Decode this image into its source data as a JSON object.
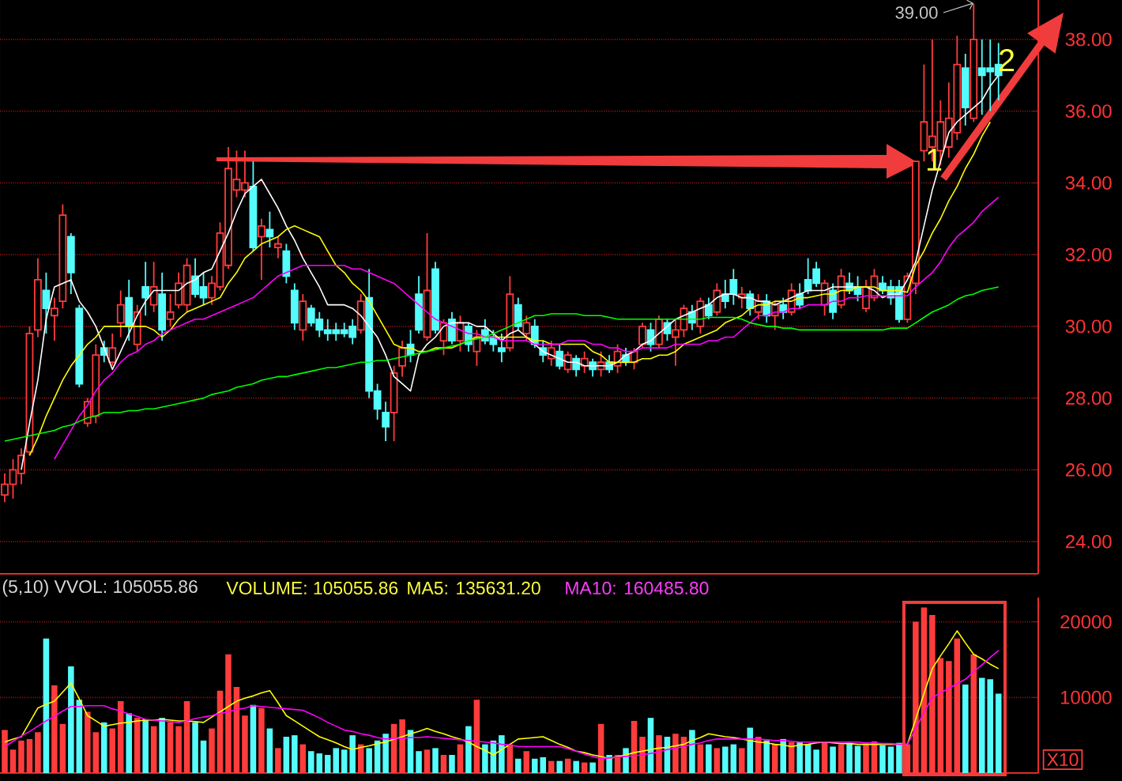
{
  "chart_data": [
    {
      "type": "candlestick",
      "categories": [
        null,
        null,
        null,
        null,
        null,
        null,
        null,
        null,
        null,
        null,
        null,
        null,
        null,
        null,
        null,
        null,
        null,
        null,
        null,
        null,
        null,
        null,
        null,
        null,
        null,
        null,
        null,
        null,
        null,
        null,
        null,
        null,
        null,
        null,
        null,
        null,
        null,
        null,
        null,
        null,
        null,
        null,
        null,
        null,
        null,
        null,
        null,
        null,
        null,
        null,
        null,
        null,
        null,
        null,
        null,
        null,
        null,
        null,
        null,
        null,
        null,
        null,
        null,
        null,
        null,
        null,
        null,
        null,
        null,
        null,
        null,
        null,
        null,
        null,
        null,
        null,
        null,
        null,
        null,
        null,
        null,
        null,
        null,
        null,
        null,
        null,
        null,
        null,
        null,
        null,
        null,
        null,
        null,
        null,
        null,
        null,
        null,
        null,
        null,
        null,
        null,
        null,
        null,
        null,
        null,
        null,
        null,
        null,
        null,
        null,
        null,
        null,
        null,
        null,
        null,
        null,
        null,
        null,
        null,
        null,
        null
      ],
      "ohlc": [
        [
          25.3,
          25.9,
          25.1,
          25.6
        ],
        [
          25.6,
          26.3,
          25.2,
          26.0
        ],
        [
          25.9,
          26.6,
          25.6,
          26.4
        ],
        [
          26.5,
          30.0,
          26.4,
          29.8
        ],
        [
          29.9,
          31.9,
          29.7,
          31.3
        ],
        [
          31.0,
          31.5,
          29.8,
          30.5
        ],
        [
          30.3,
          30.8,
          29.6,
          30.5
        ],
        [
          30.7,
          33.4,
          30.5,
          33.1
        ],
        [
          32.5,
          32.6,
          30.9,
          31.5
        ],
        [
          30.5,
          30.6,
          28.3,
          28.4
        ],
        [
          27.3,
          28.0,
          27.2,
          27.9
        ],
        [
          27.5,
          29.5,
          27.3,
          29.2
        ],
        [
          29.4,
          29.6,
          29.0,
          29.2
        ],
        [
          29.0,
          29.8,
          28.9,
          29.4
        ],
        [
          30.1,
          31.0,
          29.7,
          30.6
        ],
        [
          30.8,
          31.3,
          29.6,
          30.0
        ],
        [
          29.5,
          30.6,
          29.3,
          30.4
        ],
        [
          31.1,
          31.8,
          30.3,
          30.8
        ],
        [
          30.6,
          31.8,
          30.4,
          31.1
        ],
        [
          30.9,
          31.5,
          29.6,
          29.9
        ],
        [
          30.2,
          30.9,
          30.0,
          30.4
        ],
        [
          30.6,
          31.5,
          30.5,
          31.2
        ],
        [
          30.6,
          31.9,
          30.4,
          31.7
        ],
        [
          31.4,
          31.9,
          30.8,
          30.9
        ],
        [
          31.1,
          31.5,
          30.6,
          30.8
        ],
        [
          30.8,
          31.4,
          30.6,
          31.2
        ],
        [
          31.1,
          32.9,
          31.0,
          32.6
        ],
        [
          31.7,
          35.0,
          31.6,
          34.4
        ],
        [
          33.8,
          34.9,
          33.6,
          34.1
        ],
        [
          33.8,
          34.9,
          33.6,
          34.0
        ],
        [
          33.9,
          34.6,
          32.1,
          32.2
        ],
        [
          32.5,
          33.0,
          31.3,
          32.8
        ],
        [
          32.7,
          33.2,
          32.2,
          32.5
        ],
        [
          32.2,
          32.5,
          31.9,
          32.3
        ],
        [
          32.1,
          32.3,
          31.2,
          31.4
        ],
        [
          31.0,
          31.2,
          29.9,
          30.1
        ],
        [
          29.9,
          30.9,
          29.6,
          30.7
        ],
        [
          30.5,
          30.6,
          30.0,
          30.1
        ],
        [
          30.2,
          30.4,
          29.7,
          29.9
        ],
        [
          29.9,
          30.2,
          29.6,
          29.8
        ],
        [
          29.9,
          30.1,
          29.6,
          29.8
        ],
        [
          29.9,
          30.1,
          29.7,
          29.8
        ],
        [
          30.0,
          30.2,
          29.5,
          29.7
        ],
        [
          29.9,
          30.9,
          29.8,
          30.7
        ],
        [
          30.8,
          31.6,
          28.0,
          28.2
        ],
        [
          28.2,
          28.4,
          27.4,
          27.7
        ],
        [
          27.6,
          27.9,
          26.8,
          27.2
        ],
        [
          27.6,
          28.9,
          26.8,
          28.7
        ],
        [
          28.9,
          29.6,
          28.6,
          29.4
        ],
        [
          29.5,
          29.9,
          29.0,
          29.2
        ],
        [
          30.9,
          31.4,
          29.8,
          29.9
        ],
        [
          29.7,
          32.6,
          29.6,
          31.0
        ],
        [
          31.6,
          31.8,
          29.8,
          29.9
        ],
        [
          29.6,
          30.2,
          29.2,
          30.1
        ],
        [
          30.2,
          30.4,
          29.5,
          29.6
        ],
        [
          29.6,
          30.3,
          29.3,
          30.1
        ],
        [
          30.0,
          30.1,
          29.3,
          29.5
        ],
        [
          29.3,
          29.9,
          28.9,
          29.7
        ],
        [
          29.9,
          30.2,
          29.5,
          29.6
        ],
        [
          29.7,
          29.9,
          29.3,
          29.5
        ],
        [
          29.4,
          29.8,
          29.0,
          29.3
        ],
        [
          29.4,
          31.4,
          29.3,
          30.9
        ],
        [
          30.6,
          30.8,
          29.9,
          30.0
        ],
        [
          29.8,
          30.3,
          29.6,
          30.1
        ],
        [
          30.0,
          30.2,
          29.4,
          29.5
        ],
        [
          29.4,
          29.6,
          29.0,
          29.2
        ],
        [
          29.1,
          29.6,
          28.9,
          29.4
        ],
        [
          29.3,
          29.5,
          28.8,
          28.9
        ],
        [
          28.8,
          29.3,
          28.7,
          29.2
        ],
        [
          29.1,
          29.2,
          28.6,
          28.8
        ],
        [
          28.9,
          29.3,
          28.7,
          29.1
        ],
        [
          29.0,
          29.1,
          28.6,
          28.8
        ],
        [
          28.8,
          29.3,
          28.6,
          29.0
        ],
        [
          29.0,
          29.2,
          28.7,
          28.8
        ],
        [
          28.9,
          29.5,
          28.7,
          29.3
        ],
        [
          29.2,
          29.4,
          28.9,
          29.0
        ],
        [
          29.0,
          29.4,
          28.8,
          29.3
        ],
        [
          29.5,
          30.1,
          29.4,
          30.0
        ],
        [
          29.9,
          30.1,
          29.3,
          29.5
        ],
        [
          29.5,
          30.3,
          29.4,
          30.2
        ],
        [
          30.1,
          30.2,
          29.6,
          29.8
        ],
        [
          29.7,
          30.2,
          28.9,
          29.9
        ],
        [
          29.9,
          30.6,
          29.7,
          30.5
        ],
        [
          30.4,
          30.6,
          29.9,
          30.1
        ],
        [
          30.0,
          30.8,
          29.8,
          30.7
        ],
        [
          30.6,
          30.8,
          30.2,
          30.3
        ],
        [
          30.4,
          31.2,
          30.3,
          31.0
        ],
        [
          30.9,
          31.3,
          30.5,
          30.7
        ],
        [
          31.3,
          31.6,
          30.6,
          30.9
        ],
        [
          30.8,
          31.1,
          30.5,
          30.9
        ],
        [
          30.9,
          31.0,
          30.3,
          30.5
        ],
        [
          30.4,
          30.9,
          30.2,
          30.7
        ],
        [
          30.7,
          30.9,
          30.1,
          30.3
        ],
        [
          30.3,
          30.7,
          29.9,
          30.6
        ],
        [
          30.6,
          30.8,
          30.2,
          30.4
        ],
        [
          30.4,
          31.2,
          30.3,
          31.0
        ],
        [
          30.9,
          31.2,
          30.5,
          30.6
        ],
        [
          31.3,
          31.9,
          30.9,
          31.0
        ],
        [
          31.6,
          31.8,
          31.1,
          31.2
        ],
        [
          30.6,
          31.3,
          30.3,
          31.2
        ],
        [
          31.0,
          31.2,
          30.2,
          30.4
        ],
        [
          30.6,
          31.6,
          30.5,
          31.4
        ],
        [
          31.2,
          31.5,
          30.9,
          31.0
        ],
        [
          31.1,
          31.4,
          30.7,
          30.9
        ],
        [
          30.5,
          31.3,
          30.4,
          31.1
        ],
        [
          30.8,
          31.6,
          30.7,
          31.4
        ],
        [
          31.2,
          31.4,
          30.9,
          31.0
        ],
        [
          31.1,
          31.3,
          30.6,
          30.8
        ],
        [
          31.1,
          31.3,
          30.1,
          30.2
        ],
        [
          30.2,
          31.5,
          30.1,
          31.4
        ],
        [
          31.2,
          34.6,
          30.9,
          34.6
        ],
        [
          34.9,
          37.3,
          34.6,
          35.7
        ],
        [
          35.0,
          38.0,
          34.6,
          35.3
        ],
        [
          34.9,
          36.3,
          34.5,
          35.7
        ],
        [
          35.0,
          36.8,
          34.7,
          35.8
        ],
        [
          35.4,
          38.1,
          35.2,
          37.3
        ],
        [
          37.2,
          37.6,
          35.6,
          36.1
        ],
        [
          35.8,
          39.0,
          35.7,
          38.0
        ],
        [
          37.2,
          38.0,
          35.9,
          37.0
        ],
        [
          37.2,
          38.0,
          36.0,
          37.1
        ],
        [
          37.3,
          37.9,
          36.3,
          37.0
        ]
      ],
      "colors": [
        "#ff3c3c",
        "#ff3c3c",
        "#ff3c3c",
        "#ff3c3c",
        "#ff3c3c",
        "#54fcfc",
        "#ff3c3c",
        "#ff3c3c",
        "#54fcfc",
        "#54fcfc",
        "#ff3c3c",
        "#ff3c3c",
        "#54fcfc",
        "#ff3c3c",
        "#ff3c3c",
        "#54fcfc",
        "#ff3c3c",
        "#54fcfc",
        "#ff3c3c",
        "#54fcfc",
        "#ff3c3c",
        "#ff3c3c",
        "#ff3c3c",
        "#54fcfc",
        "#54fcfc",
        "#ff3c3c",
        "#ff3c3c",
        "#ff3c3c",
        "#ff3c3c",
        "#ff3c3c",
        "#54fcfc",
        "#ff3c3c",
        "#54fcfc",
        "#ff3c3c",
        "#54fcfc",
        "#54fcfc",
        "#ff3c3c",
        "#54fcfc",
        "#54fcfc",
        "#54fcfc",
        "#54fcfc",
        "#54fcfc",
        "#54fcfc",
        "#ff3c3c",
        "#54fcfc",
        "#54fcfc",
        "#54fcfc",
        "#ff3c3c",
        "#ff3c3c",
        "#54fcfc",
        "#54fcfc",
        "#ff3c3c",
        "#54fcfc",
        "#ff3c3c",
        "#54fcfc",
        "#ff3c3c",
        "#54fcfc",
        "#ff3c3c",
        "#54fcfc",
        "#54fcfc",
        "#54fcfc",
        "#ff3c3c",
        "#54fcfc",
        "#ff3c3c",
        "#54fcfc",
        "#54fcfc",
        "#ff3c3c",
        "#54fcfc",
        "#ff3c3c",
        "#54fcfc",
        "#ff3c3c",
        "#54fcfc",
        "#ff3c3c",
        "#54fcfc",
        "#ff3c3c",
        "#54fcfc",
        "#ff3c3c",
        "#ff3c3c",
        "#54fcfc",
        "#ff3c3c",
        "#54fcfc",
        "#ff3c3c",
        "#ff3c3c",
        "#54fcfc",
        "#ff3c3c",
        "#54fcfc",
        "#ff3c3c",
        "#54fcfc",
        "#54fcfc",
        "#ff3c3c",
        "#54fcfc",
        "#ff3c3c",
        "#54fcfc",
        "#ff3c3c",
        "#54fcfc",
        "#ff3c3c",
        "#54fcfc",
        "#54fcfc",
        "#54fcfc",
        "#ff3c3c",
        "#54fcfc",
        "#ff3c3c",
        "#54fcfc",
        "#54fcfc",
        "#ff3c3c",
        "#ff3c3c",
        "#54fcfc",
        "#54fcfc",
        "#54fcfc",
        "#ff3c3c",
        "#ff3c3c",
        "#ff3c3c",
        "#ff3c3c",
        "#ff3c3c",
        "#ff3c3c",
        "#ff3c3c",
        "#54fcfc",
        "#ff3c3c",
        "#54fcfc",
        "#54fcfc",
        "#54fcfc"
      ],
      "series": [
        {
          "type": "line",
          "color": "#ffffff",
          "values": [
            null,
            null,
            26.0,
            27.3,
            28.5,
            30.2,
            31.1,
            31.2,
            31.3,
            30.7,
            30.4,
            30.0,
            29.4,
            28.8,
            29.3,
            29.8,
            30.3,
            30.7,
            31.0,
            31.0,
            31.0,
            31.0,
            31.2,
            31.3,
            31.5,
            31.6,
            32.1,
            32.6,
            33.2,
            33.7,
            33.9,
            34.1,
            33.7,
            33.3,
            32.8,
            32.4,
            31.9,
            31.5,
            31.1,
            30.6,
            30.6,
            30.6,
            30.5,
            30.3,
            30.0,
            29.7,
            29.2,
            28.6,
            28.4,
            28.2,
            29.2,
            29.5,
            29.7,
            30.0,
            30.1,
            30.1,
            30.1,
            30.0,
            30.0,
            29.8,
            29.6,
            29.8,
            29.9,
            29.7,
            29.5,
            29.3,
            29.2,
            29.1,
            29.0,
            29.0,
            28.9,
            28.9,
            28.9,
            28.9,
            29.0,
            29.2,
            29.3,
            29.5,
            29.6,
            29.8,
            30.0,
            30.2,
            30.3,
            30.4,
            30.5,
            30.6,
            30.8,
            30.9,
            30.9,
            30.8,
            30.8,
            30.7,
            30.7,
            30.6,
            30.7,
            30.8,
            30.9,
            31.0,
            31.0,
            31.0,
            31.1,
            31.1,
            31.1,
            31.1,
            31.1,
            31.0,
            30.8,
            30.9,
            30.9,
            31.3,
            31.8,
            32.8,
            33.8,
            34.6,
            35.4,
            35.7,
            35.9,
            36.1,
            36.3,
            36.7,
            37.0
          ]
        },
        {
          "type": "line",
          "color": "#ffff00",
          "values": [
            null,
            null,
            null,
            26.4,
            26.9,
            27.5,
            28.0,
            28.5,
            28.9,
            29.2,
            29.5,
            29.7,
            30.0,
            30.0,
            30.0,
            30.0,
            30.0,
            30.0,
            29.9,
            29.7,
            29.9,
            30.2,
            30.4,
            30.5,
            30.6,
            30.7,
            30.8,
            31.2,
            31.5,
            31.9,
            32.1,
            32.3,
            32.4,
            32.5,
            32.7,
            32.8,
            32.7,
            32.6,
            32.5,
            32.1,
            31.7,
            31.5,
            31.2,
            31.0,
            30.7,
            30.3,
            29.9,
            29.5,
            29.4,
            29.4,
            29.3,
            29.3,
            29.4,
            29.4,
            29.4,
            29.5,
            29.6,
            29.7,
            29.7,
            29.7,
            29.7,
            29.7,
            29.7,
            29.7,
            29.6,
            29.6,
            29.5,
            29.5,
            29.5,
            29.5,
            29.5,
            29.3,
            29.2,
            29.0,
            29.0,
            29.0,
            29.0,
            29.1,
            29.1,
            29.2,
            29.2,
            29.3,
            29.5,
            29.6,
            29.7,
            29.8,
            29.9,
            30.1,
            30.2,
            30.3,
            30.5,
            30.6,
            30.6,
            30.7,
            30.7,
            30.7,
            30.8,
            30.8,
            30.85,
            30.9,
            30.9,
            31.0,
            31.0,
            31.1,
            31.1,
            31.1,
            31.0,
            31.0,
            31.0,
            30.95,
            31.7,
            32.1,
            32.6,
            33.0,
            33.5,
            33.9,
            34.4,
            34.8,
            35.3,
            35.7,
            null
          ]
        },
        {
          "type": "line",
          "color": "#ff00ff",
          "values": [
            null,
            null,
            null,
            null,
            null,
            null,
            26.3,
            26.7,
            27.1,
            27.5,
            27.8,
            28.2,
            28.5,
            28.7,
            29.0,
            29.2,
            29.3,
            29.5,
            29.6,
            29.8,
            29.9,
            30.0,
            30.1,
            30.2,
            30.2,
            30.3,
            30.4,
            30.5,
            30.6,
            30.7,
            30.8,
            31.0,
            31.2,
            31.4,
            31.5,
            31.6,
            31.7,
            31.7,
            31.7,
            31.7,
            31.7,
            31.7,
            31.6,
            31.6,
            31.5,
            31.4,
            31.3,
            31.2,
            31.0,
            30.8,
            30.6,
            30.4,
            30.2,
            30.1,
            30.0,
            29.9,
            29.8,
            29.8,
            29.7,
            29.7,
            29.6,
            29.6,
            29.6,
            29.6,
            29.5,
            29.5,
            29.5,
            29.5,
            29.6,
            29.6,
            29.6,
            29.5,
            29.5,
            29.4,
            29.4,
            29.3,
            29.3,
            29.4,
            29.4,
            29.4,
            29.4,
            29.5,
            29.5,
            29.5,
            29.5,
            29.6,
            29.6,
            29.7,
            29.7,
            29.9,
            30.1,
            30.3,
            30.3,
            30.4,
            30.4,
            30.5,
            30.5,
            30.6,
            30.6,
            30.6,
            30.7,
            30.7,
            30.8,
            30.8,
            30.85,
            30.85,
            30.85,
            30.85,
            30.85,
            30.85,
            31.1,
            31.3,
            31.5,
            31.8,
            32.2,
            32.5,
            32.7,
            32.9,
            33.2,
            33.4,
            33.6
          ]
        },
        {
          "type": "line",
          "color": "#00ff00",
          "values": [
            26.8,
            26.85,
            26.9,
            26.95,
            27.0,
            27.05,
            27.1,
            27.2,
            27.25,
            27.35,
            27.45,
            27.5,
            27.6,
            27.6,
            27.6,
            27.65,
            27.65,
            27.7,
            27.7,
            27.75,
            27.8,
            27.85,
            27.9,
            27.95,
            28.0,
            28.1,
            28.15,
            28.2,
            28.3,
            28.35,
            28.4,
            28.5,
            28.55,
            28.6,
            28.6,
            28.65,
            28.7,
            28.75,
            28.8,
            28.85,
            28.85,
            28.9,
            28.95,
            29.0,
            29.0,
            29.05,
            29.05,
            29.1,
            29.15,
            29.2,
            29.25,
            29.3,
            29.35,
            29.4,
            29.45,
            29.5,
            29.6,
            29.65,
            29.7,
            29.8,
            29.9,
            30.0,
            30.1,
            30.2,
            30.3,
            30.3,
            30.35,
            30.35,
            30.35,
            30.35,
            30.3,
            30.3,
            30.3,
            30.25,
            30.2,
            30.2,
            30.2,
            30.2,
            30.2,
            30.2,
            30.2,
            30.2,
            30.2,
            30.2,
            30.2,
            30.25,
            30.25,
            30.25,
            30.25,
            30.2,
            30.1,
            30.05,
            30.0,
            30.0,
            29.95,
            29.95,
            29.9,
            29.9,
            29.9,
            29.9,
            29.9,
            29.9,
            29.9,
            29.9,
            29.9,
            29.9,
            29.9,
            29.95,
            29.95,
            29.95,
            30.1,
            30.25,
            30.4,
            30.5,
            30.6,
            30.75,
            30.85,
            30.9,
            31.0,
            31.05,
            31.1
          ]
        }
      ],
      "ylim": [
        23.1,
        39.1
      ],
      "yticks": [
        {
          "value": 24,
          "label": "24.00"
        },
        {
          "value": 26,
          "label": "26.00"
        },
        {
          "value": 28,
          "label": "28.00"
        },
        {
          "value": 30,
          "label": "30.00"
        },
        {
          "value": 32,
          "label": "32.00"
        },
        {
          "value": 34,
          "label": "34.00"
        },
        {
          "value": 36,
          "label": "36.00"
        },
        {
          "value": 38,
          "label": "38.00"
        }
      ],
      "grid": "y",
      "tick_labels": "y",
      "annotations": [
        "39.00",
        "1",
        "2"
      ]
    },
    {
      "type": "bar",
      "categories": [
        null,
        null,
        null,
        null,
        null,
        null,
        null,
        null,
        null,
        null,
        null,
        null,
        null,
        null,
        null,
        null,
        null,
        null,
        null,
        null,
        null,
        null,
        null,
        null,
        null,
        null,
        null,
        null,
        null,
        null,
        null,
        null,
        null,
        null,
        null,
        null,
        null,
        null,
        null,
        null,
        null,
        null,
        null,
        null,
        null,
        null,
        null,
        null,
        null,
        null,
        null,
        null,
        null,
        null,
        null,
        null,
        null,
        null,
        null,
        null,
        null,
        null,
        null,
        null,
        null,
        null,
        null,
        null,
        null,
        null,
        null,
        null,
        null,
        null,
        null,
        null,
        null,
        null,
        null,
        null,
        null,
        null,
        null,
        null,
        null,
        null,
        null,
        null,
        null,
        null,
        null,
        null,
        null,
        null,
        null,
        null,
        null,
        null,
        null,
        null,
        null,
        null,
        null,
        null,
        null,
        null,
        null,
        null,
        null,
        null,
        null,
        null,
        null,
        null,
        null,
        null,
        null,
        null,
        null,
        null,
        null
      ],
      "series": [
        {
          "type": "bar",
          "values": [
            5700,
            3100,
            4300,
            4500,
            5400,
            17800,
            11600,
            6500,
            14100,
            9700,
            8100,
            5400,
            6700,
            5900,
            9500,
            7900,
            7300,
            7100,
            6200,
            7300,
            6700,
            6200,
            9500,
            6700,
            4300,
            5900,
            10900,
            15700,
            11400,
            7600,
            9000,
            8600,
            5900,
            3300,
            4800,
            5000,
            3800,
            2900,
            2600,
            2400,
            3300,
            3100,
            5000,
            3800,
            3300,
            4300,
            5200,
            6500,
            7100,
            5700,
            2900,
            3100,
            3300,
            2400,
            2400,
            3800,
            6200,
            9700,
            3800,
            4300,
            5000,
            3800,
            1900,
            2900,
            1900,
            2100,
            1600,
            1600,
            1900,
            1600,
            1400,
            1400,
            6500,
            2400,
            2400,
            3300,
            6900,
            4800,
            7300,
            5000,
            4800,
            5200,
            4800,
            5700,
            3800,
            3800,
            3300,
            3500,
            3800,
            3300,
            6000,
            4800,
            4300,
            3800,
            4500,
            4100,
            4100,
            3800,
            3100,
            4100,
            3500,
            3800,
            4000,
            3600,
            3900,
            4200,
            3700,
            3500,
            4000,
            3800,
            20000,
            21900,
            20900,
            15200,
            14800,
            17800,
            11700,
            15700,
            12600,
            12400,
            10500
          ],
          "colors": [
            "#ff3c3c",
            "#ff3c3c",
            "#ff3c3c",
            "#ff3c3c",
            "#ff3c3c",
            "#54fcfc",
            "#ff3c3c",
            "#ff3c3c",
            "#54fcfc",
            "#54fcfc",
            "#ff3c3c",
            "#ff3c3c",
            "#54fcfc",
            "#ff3c3c",
            "#ff3c3c",
            "#54fcfc",
            "#ff3c3c",
            "#54fcfc",
            "#ff3c3c",
            "#54fcfc",
            "#ff3c3c",
            "#ff3c3c",
            "#ff3c3c",
            "#54fcfc",
            "#54fcfc",
            "#ff3c3c",
            "#ff3c3c",
            "#ff3c3c",
            "#ff3c3c",
            "#ff3c3c",
            "#54fcfc",
            "#ff3c3c",
            "#54fcfc",
            "#ff3c3c",
            "#54fcfc",
            "#54fcfc",
            "#ff3c3c",
            "#54fcfc",
            "#54fcfc",
            "#54fcfc",
            "#54fcfc",
            "#54fcfc",
            "#54fcfc",
            "#ff3c3c",
            "#54fcfc",
            "#54fcfc",
            "#54fcfc",
            "#ff3c3c",
            "#ff3c3c",
            "#54fcfc",
            "#54fcfc",
            "#ff3c3c",
            "#54fcfc",
            "#ff3c3c",
            "#54fcfc",
            "#ff3c3c",
            "#54fcfc",
            "#ff3c3c",
            "#54fcfc",
            "#54fcfc",
            "#54fcfc",
            "#ff3c3c",
            "#54fcfc",
            "#ff3c3c",
            "#54fcfc",
            "#54fcfc",
            "#ff3c3c",
            "#54fcfc",
            "#ff3c3c",
            "#54fcfc",
            "#ff3c3c",
            "#54fcfc",
            "#ff3c3c",
            "#54fcfc",
            "#ff3c3c",
            "#54fcfc",
            "#ff3c3c",
            "#ff3c3c",
            "#54fcfc",
            "#ff3c3c",
            "#54fcfc",
            "#ff3c3c",
            "#ff3c3c",
            "#54fcfc",
            "#ff3c3c",
            "#54fcfc",
            "#ff3c3c",
            "#54fcfc",
            "#54fcfc",
            "#ff3c3c",
            "#54fcfc",
            "#ff3c3c",
            "#54fcfc",
            "#ff3c3c",
            "#54fcfc",
            "#ff3c3c",
            "#54fcfc",
            "#54fcfc",
            "#54fcfc",
            "#ff3c3c",
            "#54fcfc",
            "#ff3c3c",
            "#54fcfc",
            "#54fcfc",
            "#ff3c3c",
            "#ff3c3c",
            "#54fcfc",
            "#54fcfc",
            "#54fcfc",
            "#ff3c3c",
            "#ff3c3c",
            "#ff3c3c",
            "#ff3c3c",
            "#ff3c3c",
            "#ff3c3c",
            "#ff3c3c",
            "#54fcfc",
            "#ff3c3c",
            "#54fcfc",
            "#54fcfc",
            "#54fcfc"
          ]
        },
        {
          "type": "line",
          "color": "#ffff00",
          "values": [
            4100,
            4500,
            4800,
            6700,
            8600,
            9100,
            9500,
            10700,
            11900,
            9800,
            7600,
            6900,
            6200,
            6400,
            6600,
            6700,
            6900,
            7000,
            7000,
            7100,
            7000,
            6900,
            6900,
            6800,
            6700,
            7400,
            8100,
            8800,
            9500,
            9900,
            10200,
            10600,
            10900,
            9300,
            7600,
            6900,
            6200,
            5500,
            4800,
            4400,
            4000,
            3500,
            3100,
            3400,
            3600,
            3900,
            4100,
            4500,
            4800,
            5200,
            5500,
            5900,
            5500,
            5200,
            4800,
            4500,
            4100,
            3500,
            3000,
            2400,
            3100,
            3800,
            4500,
            4600,
            4700,
            4800,
            4300,
            3800,
            3400,
            2900,
            2700,
            2400,
            2200,
            1900,
            2200,
            2400,
            2700,
            2900,
            3100,
            3300,
            3400,
            3600,
            3800,
            4300,
            4700,
            5200,
            5000,
            4800,
            4700,
            4500,
            4300,
            4100,
            4000,
            3800,
            3700,
            3500,
            3700,
            3800,
            4000,
            4100,
            4000,
            3900,
            3900,
            3800,
            3800,
            3800,
            3800,
            3800,
            3800,
            3800,
            7100,
            10500,
            13800,
            15500,
            17100,
            18800,
            17200,
            15700,
            15100,
            14400,
            13800
          ]
        },
        {
          "type": "line",
          "color": "#ff00ff",
          "values": [
            3500,
            4200,
            4900,
            5500,
            6200,
            6900,
            7500,
            8200,
            8800,
            8800,
            8900,
            8900,
            8900,
            8500,
            8200,
            7800,
            7500,
            7100,
            7000,
            6900,
            6800,
            6700,
            6900,
            7200,
            7400,
            7600,
            7900,
            8100,
            8400,
            8600,
            8900,
            8800,
            8700,
            8600,
            8500,
            8400,
            8300,
            7800,
            7300,
            6700,
            6200,
            5700,
            5500,
            5200,
            5000,
            4700,
            4500,
            4600,
            4600,
            4700,
            4700,
            4800,
            4700,
            4600,
            4500,
            4400,
            4300,
            4200,
            4100,
            4000,
            3800,
            3700,
            3500,
            3500,
            3500,
            3500,
            3500,
            3500,
            3200,
            2900,
            2500,
            2200,
            1900,
            2000,
            2100,
            2200,
            2300,
            2400,
            2600,
            2800,
            3100,
            3300,
            3500,
            3800,
            4000,
            4300,
            4500,
            4500,
            4500,
            4500,
            4500,
            4500,
            4400,
            4300,
            4300,
            4200,
            4100,
            4100,
            4100,
            4100,
            4100,
            4100,
            4100,
            4100,
            4000,
            4000,
            3900,
            3900,
            3800,
            3800,
            5900,
            8000,
            10000,
            10600,
            11200,
            11800,
            12400,
            13400,
            14300,
            15300,
            16200
          ]
        }
      ],
      "ylim": [
        0,
        23200
      ],
      "yticks": [
        10000,
        20000
      ],
      "grid": "y",
      "tick_labels": "y",
      "annotations": [
        "(5,10) VVOL: 105055.86",
        "VOLUME: 105055.86",
        "MA5: 135631.20",
        "MA10: 160485.80",
        "X10"
      ]
    }
  ]
}
